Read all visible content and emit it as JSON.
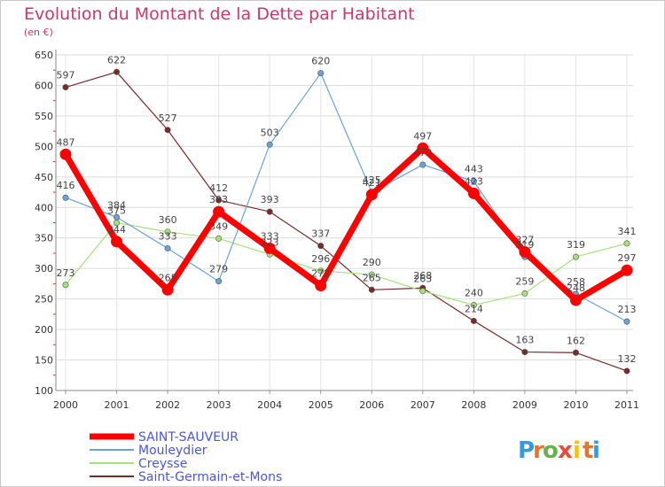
{
  "chart_data": {
    "type": "line",
    "title": "Evolution du Montant de la Dette par Habitant",
    "subtitle": "(en €)",
    "xlabel": "",
    "ylabel": "",
    "x": [
      "2000",
      "2001",
      "2002",
      "2003",
      "2004",
      "2005",
      "2006",
      "2007",
      "2008",
      "2009",
      "2010",
      "2011"
    ],
    "ylim": [
      100,
      650
    ],
    "yticks": [
      100,
      150,
      200,
      250,
      300,
      350,
      400,
      450,
      500,
      550,
      600,
      650
    ],
    "grid": true,
    "legend": "bottom-left",
    "series": [
      {
        "name": "Saint-Germain-et-Mons",
        "color": "#7a2a2a",
        "values": [
          597,
          622,
          527,
          412,
          393,
          337,
          265,
          268,
          214,
          163,
          162,
          132
        ]
      },
      {
        "name": "Creysse",
        "color": "#a6e07a",
        "values": [
          273,
          375,
          360,
          349,
          323,
          296,
          290,
          263,
          240,
          259,
          319,
          341
        ]
      },
      {
        "name": "Mouleydier",
        "color": "#6aa4d6",
        "values": [
          416,
          384,
          333,
          279,
          503,
          620,
          425,
          470,
          443,
          319,
          258,
          213
        ]
      },
      {
        "name": "SAINT-SAUVEUR",
        "color": "#ff0000",
        "values": [
          487,
          344,
          265,
          393,
          333,
          272,
          421,
          497,
          423,
          327,
          248,
          297
        ]
      }
    ]
  },
  "logo": {
    "letters": [
      "P",
      "r",
      "o",
      "x",
      "i",
      "t",
      "i"
    ],
    "colors": [
      "#3a9ad9",
      "#e8732a",
      "#6ab04c",
      "#e84c3d",
      "#f1c40f",
      "#e8732a",
      "#3a9ad9"
    ]
  }
}
